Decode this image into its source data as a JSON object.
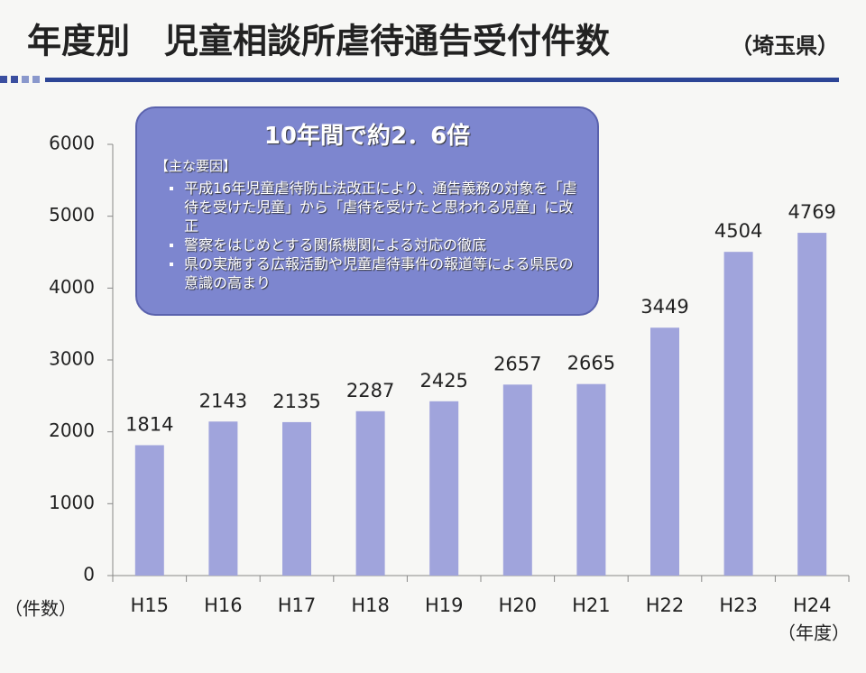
{
  "chart_data": {
    "type": "bar",
    "title": "年度別　児童相談所虐待通告受付件数",
    "subtitle": "（埼玉県）",
    "y_label": "（件数）",
    "x_label": "（年度）",
    "categories": [
      "H15",
      "H16",
      "H17",
      "H18",
      "H19",
      "H20",
      "H21",
      "H22",
      "H23",
      "H24"
    ],
    "values": [
      1814,
      2143,
      2135,
      2287,
      2425,
      2657,
      2665,
      3449,
      4504,
      4769
    ],
    "color": "#a0a4dc",
    "ylim": [
      0,
      6000
    ],
    "yticks": [
      0,
      1000,
      2000,
      3000,
      4000,
      5000,
      6000
    ],
    "annotation": {
      "heading": "10年間で約2．6倍",
      "subheading": "【主な要因】",
      "items": [
        "平成16年児童虐待防止法改正により、通告義務の対象を「虐待を受けた児童」から「虐待を受けたと思われる児童」に改正",
        "警察をはじめとする関係機関による対応の徹底",
        "県の実施する広報活動や児童虐待事件の報道等による県民の意識の高まり"
      ]
    }
  }
}
